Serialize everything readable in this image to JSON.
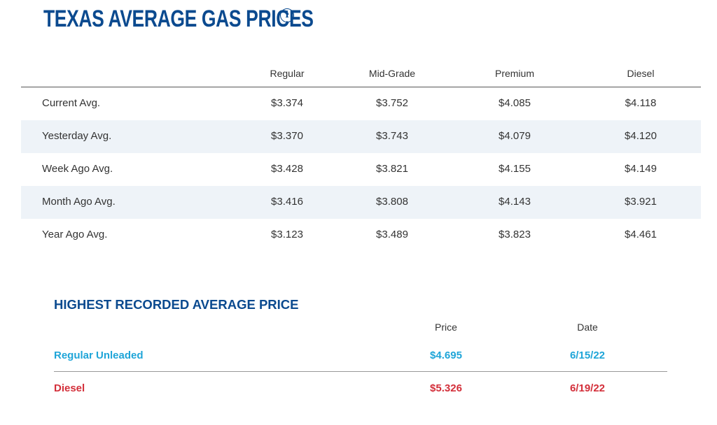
{
  "page": {
    "title": "TEXAS AVERAGE GAS PRICES",
    "info_icon": "info-icon"
  },
  "colors": {
    "title": "#0b4a8f",
    "regular_unleaded": "#1fa5d8",
    "diesel": "#d32f3a",
    "alt_row": "#eef3f8"
  },
  "prices": {
    "columns": [
      "Regular",
      "Mid-Grade",
      "Premium",
      "Diesel"
    ],
    "rows": [
      {
        "label": "Current Avg.",
        "values": [
          "$3.374",
          "$3.752",
          "$4.085",
          "$4.118"
        ]
      },
      {
        "label": "Yesterday Avg.",
        "values": [
          "$3.370",
          "$3.743",
          "$4.079",
          "$4.120"
        ]
      },
      {
        "label": "Week Ago Avg.",
        "values": [
          "$3.428",
          "$3.821",
          "$4.155",
          "$4.149"
        ]
      },
      {
        "label": "Month Ago Avg.",
        "values": [
          "$3.416",
          "$3.808",
          "$4.143",
          "$3.921"
        ]
      },
      {
        "label": "Year Ago Avg.",
        "values": [
          "$3.123",
          "$3.489",
          "$3.823",
          "$4.461"
        ]
      }
    ]
  },
  "highest": {
    "title": "HIGHEST RECORDED AVERAGE PRICE",
    "columns": [
      "Price",
      "Date"
    ],
    "rows": [
      {
        "label": "Regular Unleaded",
        "price": "$4.695",
        "date": "6/15/22"
      },
      {
        "label": "Diesel",
        "price": "$5.326",
        "date": "6/19/22"
      }
    ]
  }
}
